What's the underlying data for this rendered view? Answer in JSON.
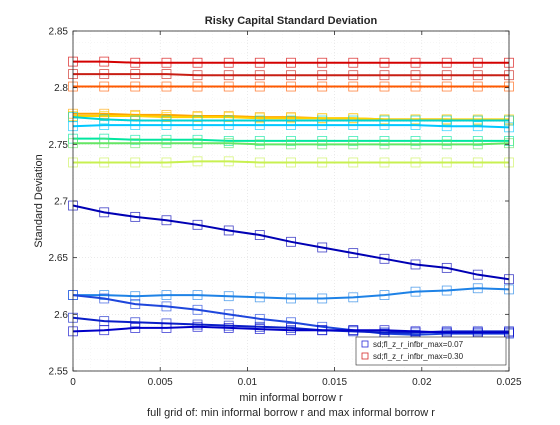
{
  "chart_data": {
    "type": "line",
    "title": "Risky Capital Standard Deviation",
    "xlabel": "min informal borrow r",
    "ylabel": "Standard Deviation",
    "caption": "full grid of: min informal borrow r and max informal borrow r",
    "xlim": [
      0,
      0.025
    ],
    "ylim": [
      2.55,
      2.85
    ],
    "x_ticks": [
      0,
      0.005,
      0.01,
      0.015,
      0.02,
      0.025
    ],
    "x_tick_labels": [
      "0",
      "0.005",
      "0.01",
      "0.015",
      "0.02",
      "0.025"
    ],
    "y_ticks": [
      2.55,
      2.6,
      2.65,
      2.7,
      2.75,
      2.8,
      2.85
    ],
    "y_tick_labels": [
      "2.55",
      "2.6",
      "2.65",
      "2.7",
      "2.75",
      "2.8",
      "2.85"
    ],
    "grid": true,
    "legend_position": "bottom-right",
    "legend": [
      {
        "label": "sd;fl_z_r_infbr_max=0.07",
        "color": "#2a2ad8"
      },
      {
        "label": "sd;fl_z_r_infbr_max=0.30",
        "color": "#d42a2a"
      }
    ],
    "x": [
      0,
      0.00179,
      0.00357,
      0.00536,
      0.00714,
      0.00893,
      0.01071,
      0.0125,
      0.01429,
      0.01607,
      0.01786,
      0.01964,
      0.02143,
      0.02321,
      0.025
    ],
    "series": [
      {
        "color": "#d40000",
        "values": [
          2.823,
          2.823,
          2.822,
          2.822,
          2.822,
          2.822,
          2.822,
          2.822,
          2.822,
          2.822,
          2.822,
          2.822,
          2.822,
          2.822,
          2.822
        ]
      },
      {
        "color": "#c81e14",
        "values": [
          2.812,
          2.812,
          2.812,
          2.812,
          2.811,
          2.811,
          2.811,
          2.811,
          2.811,
          2.811,
          2.811,
          2.811,
          2.811,
          2.811,
          2.811
        ]
      },
      {
        "color": "#ff5a00",
        "values": [
          2.801,
          2.801,
          2.801,
          2.801,
          2.801,
          2.801,
          2.801,
          2.801,
          2.801,
          2.801,
          2.801,
          2.801,
          2.801,
          2.801,
          2.801
        ]
      },
      {
        "color": "#ffa500",
        "values": [
          2.777,
          2.777,
          2.776,
          2.776,
          2.775,
          2.775,
          2.774,
          2.774,
          2.773,
          2.773,
          2.772,
          2.772,
          2.772,
          2.771,
          2.771
        ]
      },
      {
        "color": "#ffd200",
        "values": [
          2.775,
          2.775,
          2.775,
          2.774,
          2.774,
          2.774,
          2.773,
          2.773,
          2.773,
          2.773,
          2.772,
          2.772,
          2.772,
          2.772,
          2.772
        ]
      },
      {
        "color": "#00d2d2",
        "values": [
          2.774,
          2.772,
          2.771,
          2.771,
          2.771,
          2.771,
          2.771,
          2.771,
          2.771,
          2.771,
          2.771,
          2.771,
          2.771,
          2.771,
          2.771
        ]
      },
      {
        "color": "#00c8ff",
        "values": [
          2.766,
          2.767,
          2.767,
          2.767,
          2.767,
          2.767,
          2.767,
          2.767,
          2.767,
          2.767,
          2.767,
          2.767,
          2.766,
          2.766,
          2.765
        ]
      },
      {
        "color": "#00e6a0",
        "values": [
          2.755,
          2.755,
          2.754,
          2.754,
          2.754,
          2.753,
          2.753,
          2.753,
          2.753,
          2.753,
          2.753,
          2.753,
          2.753,
          2.753,
          2.753
        ]
      },
      {
        "color": "#64e664",
        "values": [
          2.751,
          2.751,
          2.751,
          2.751,
          2.751,
          2.751,
          2.75,
          2.75,
          2.75,
          2.75,
          2.75,
          2.75,
          2.75,
          2.75,
          2.751
        ]
      },
      {
        "color": "#c8f050",
        "values": [
          2.734,
          2.734,
          2.734,
          2.734,
          2.735,
          2.735,
          2.734,
          2.734,
          2.734,
          2.734,
          2.734,
          2.734,
          2.734,
          2.734,
          2.734
        ]
      },
      {
        "color": "#0000b4",
        "values": [
          2.696,
          2.69,
          2.686,
          2.683,
          2.679,
          2.674,
          2.67,
          2.664,
          2.659,
          2.654,
          2.649,
          2.644,
          2.641,
          2.635,
          2.631
        ]
      },
      {
        "color": "#1e82e6",
        "values": [
          2.617,
          2.617,
          2.616,
          2.617,
          2.617,
          2.616,
          2.615,
          2.614,
          2.614,
          2.615,
          2.617,
          2.62,
          2.621,
          2.623,
          2.622
        ]
      },
      {
        "color": "#1e46dc",
        "values": [
          2.617,
          2.614,
          2.609,
          2.607,
          2.604,
          2.6,
          2.596,
          2.593,
          2.589,
          2.586,
          2.583,
          2.582,
          2.583,
          2.583,
          2.583
        ]
      },
      {
        "color": "#0a1ec8",
        "values": [
          2.597,
          2.594,
          2.593,
          2.592,
          2.591,
          2.59,
          2.589,
          2.588,
          2.586,
          2.585,
          2.584,
          2.584,
          2.585,
          2.585,
          2.585
        ]
      },
      {
        "color": "#0000c8",
        "values": [
          2.585,
          2.586,
          2.588,
          2.588,
          2.589,
          2.588,
          2.587,
          2.586,
          2.586,
          2.586,
          2.586,
          2.585,
          2.584,
          2.584,
          2.584
        ]
      }
    ]
  }
}
